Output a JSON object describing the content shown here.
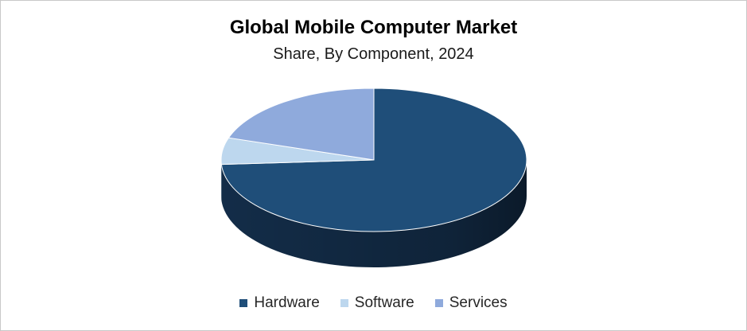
{
  "chart_data": {
    "type": "pie",
    "title": "Global Mobile Computer Market",
    "subtitle": "Share, By Component, 2024",
    "categories": [
      "Hardware",
      "Software",
      "Services"
    ],
    "values": [
      74,
      6,
      20
    ],
    "colors": [
      "#1f4e79",
      "#bdd7ee",
      "#8faadc"
    ],
    "side_colors": [
      "#142f4c",
      "#8aa7bf",
      "#5c77a6"
    ],
    "legend_position": "bottom",
    "three_d": true
  }
}
